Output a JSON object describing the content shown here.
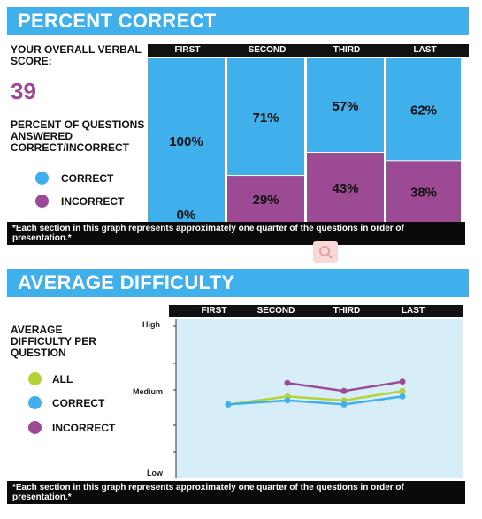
{
  "section1": {
    "title": "PERCENT CORRECT",
    "score_label": "YOUR OVERALL VERBAL SCORE:",
    "score_value": "39",
    "percent_label": "PERCENT OF QUESTIONS ANSWERED CORRECT/INCORRECT",
    "legend": [
      {
        "label": "CORRECT",
        "color": "#3fb0ec"
      },
      {
        "label": "INCORRECT",
        "color": "#9b4a93"
      }
    ],
    "footnote": "*Each section in this graph represents approximately one quarter of the questions in order of presentation.*"
  },
  "section2": {
    "title": "AVERAGE DIFFICULTY",
    "label": "AVERAGE DIFFICULTY PER QUESTION",
    "legend": [
      {
        "label": "ALL",
        "color": "#b5d334"
      },
      {
        "label": "CORRECT",
        "color": "#3fb0ec"
      },
      {
        "label": "INCORRECT",
        "color": "#9b4a93"
      }
    ],
    "footnote": "*Each section in this graph represents approximately one quarter of the questions in order of presentation.*"
  },
  "chart_data": [
    {
      "type": "bar",
      "stacked": true,
      "categories": [
        "FIRST",
        "SECOND",
        "THIRD",
        "LAST"
      ],
      "series": [
        {
          "name": "CORRECT",
          "color": "#3fb0ec",
          "values": [
            100,
            71,
            57,
            62
          ],
          "labels": [
            "100%",
            "71%",
            "57%",
            "62%"
          ]
        },
        {
          "name": "INCORRECT",
          "color": "#9b4a93",
          "values": [
            0,
            29,
            43,
            38
          ],
          "labels": [
            "0%",
            "29%",
            "43%",
            "38%"
          ]
        }
      ],
      "ylim": [
        0,
        100
      ]
    },
    {
      "type": "line",
      "categories": [
        "FIRST",
        "SECOND",
        "THIRD",
        "LAST"
      ],
      "yticks": [
        "High",
        "Medium",
        "Low"
      ],
      "ylim": [
        0,
        10
      ],
      "series": [
        {
          "name": "ALL",
          "color": "#b5d334",
          "values": [
            5.0,
            5.6,
            5.3,
            6.0
          ]
        },
        {
          "name": "CORRECT",
          "color": "#3fb0ec",
          "values": [
            5.0,
            5.3,
            5.0,
            5.6
          ]
        },
        {
          "name": "INCORRECT",
          "color": "#9b4a93",
          "values": [
            null,
            6.6,
            6.0,
            6.7
          ]
        }
      ],
      "background": "#d7eef9"
    }
  ]
}
